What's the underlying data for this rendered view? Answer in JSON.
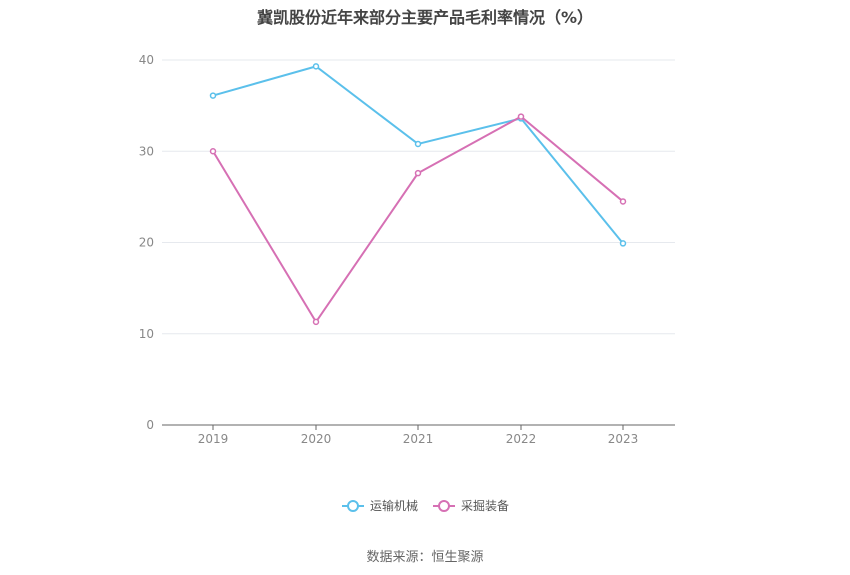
{
  "chart_data": {
    "type": "line",
    "title": "冀凯股份近年来部分主要产品毛利率情况（%）",
    "categories": [
      "2019",
      "2020",
      "2021",
      "2022",
      "2023"
    ],
    "series": [
      {
        "name": "运输机械",
        "values": [
          36.1,
          39.3,
          30.8,
          33.6,
          19.9
        ],
        "color": "#5bc0eb"
      },
      {
        "name": "采掘装备",
        "values": [
          30.0,
          11.3,
          27.6,
          33.8,
          24.5
        ],
        "color": "#d670b4"
      }
    ],
    "y_ticks": [
      "0",
      "10",
      "20",
      "30",
      "40"
    ],
    "ylim": [
      0,
      40
    ],
    "grid": true,
    "legend_position": "bottom-center"
  },
  "source": "数据来源：恒生聚源"
}
